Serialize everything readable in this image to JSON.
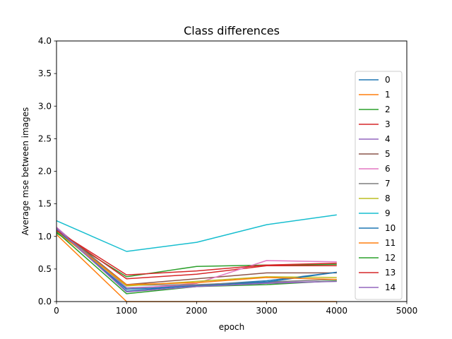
{
  "chart_data": {
    "type": "line",
    "title": "Class differences",
    "xlabel": "epoch",
    "ylabel": "Average mse between images",
    "xlim": [
      0,
      5000
    ],
    "ylim": [
      0,
      4.0
    ],
    "x_ticks": [
      0,
      1000,
      2000,
      3000,
      4000,
      5000
    ],
    "y_ticks": [
      0.0,
      0.5,
      1.0,
      1.5,
      2.0,
      2.5,
      3.0,
      3.5,
      4.0
    ],
    "x_tick_labels": [
      "0",
      "1000",
      "2000",
      "3000",
      "4000",
      "5000"
    ],
    "y_tick_labels": [
      "0.0",
      "0.5",
      "1.0",
      "1.5",
      "2.0",
      "2.5",
      "3.0",
      "3.5",
      "4.0"
    ],
    "grid": false,
    "legend_position": "right",
    "x": [
      0,
      1000,
      2000,
      3000,
      4000
    ],
    "series": [
      {
        "name": "0",
        "color": "#1f77b4",
        "values": [
          1.12,
          0.16,
          0.25,
          0.32,
          0.45
        ]
      },
      {
        "name": "1",
        "color": "#ff7f0e",
        "values": [
          1.03,
          0.0,
          0.0,
          0.0,
          0.0
        ]
      },
      {
        "name": "2",
        "color": "#2ca02c",
        "values": [
          1.05,
          0.38,
          0.54,
          0.56,
          0.57
        ]
      },
      {
        "name": "3",
        "color": "#d62728",
        "values": [
          1.1,
          0.35,
          0.42,
          0.55,
          0.55
        ]
      },
      {
        "name": "4",
        "color": "#9467bd",
        "values": [
          1.14,
          0.21,
          0.25,
          0.29,
          0.31
        ]
      },
      {
        "name": "5",
        "color": "#8c564b",
        "values": [
          1.13,
          0.26,
          0.35,
          0.44,
          0.44
        ]
      },
      {
        "name": "6",
        "color": "#e377c2",
        "values": [
          1.14,
          0.19,
          0.28,
          0.63,
          0.61
        ]
      },
      {
        "name": "7",
        "color": "#7f7f7f",
        "values": [
          1.12,
          0.25,
          0.26,
          0.3,
          0.34
        ]
      },
      {
        "name": "8",
        "color": "#bcbd22",
        "values": [
          1.08,
          0.24,
          0.31,
          0.38,
          0.37
        ]
      },
      {
        "name": "9",
        "color": "#17becf",
        "values": [
          1.24,
          0.77,
          0.91,
          1.18,
          1.33
        ]
      },
      {
        "name": "10",
        "color": "#1f77b4",
        "values": [
          1.1,
          0.19,
          0.24,
          0.3,
          0.45
        ]
      },
      {
        "name": "11",
        "color": "#ff7f0e",
        "values": [
          1.07,
          0.26,
          0.29,
          0.37,
          0.34
        ]
      },
      {
        "name": "12",
        "color": "#2ca02c",
        "values": [
          1.07,
          0.12,
          0.23,
          0.26,
          0.32
        ]
      },
      {
        "name": "13",
        "color": "#d62728",
        "values": [
          1.09,
          0.41,
          0.47,
          0.56,
          0.59
        ]
      },
      {
        "name": "14",
        "color": "#9467bd",
        "values": [
          1.13,
          0.15,
          0.23,
          0.28,
          0.31
        ]
      }
    ]
  }
}
